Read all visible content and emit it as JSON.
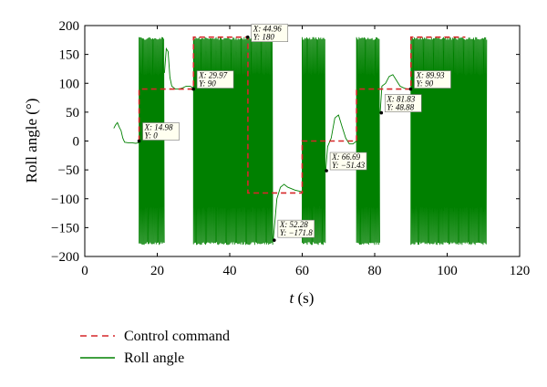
{
  "chart_data": {
    "type": "line",
    "title": "",
    "xlabel": "t (s)",
    "ylabel": "Roll angle (°)",
    "xlim": [
      0,
      120
    ],
    "ylim": [
      -200,
      200
    ],
    "xticks": [
      0,
      20,
      40,
      60,
      80,
      100,
      120
    ],
    "yticks": [
      -200,
      -150,
      -100,
      -50,
      0,
      50,
      100,
      150,
      200
    ],
    "grid": false,
    "legend_position": "bottom-left",
    "colors": {
      "control": "#d62728",
      "roll": "#008000"
    },
    "series": [
      {
        "name": "Control command",
        "style": "dashed",
        "x": [
          15,
          15,
          30,
          30,
          45,
          45,
          60,
          60,
          75,
          75,
          90,
          90,
          105
        ],
        "y": [
          0,
          90,
          90,
          180,
          180,
          -90,
          -90,
          0,
          0,
          90,
          90,
          180,
          180
        ]
      },
      {
        "name": "Roll angle",
        "style": "solid",
        "segments": [
          {
            "kind": "smooth",
            "x": [
              8,
              8.5,
              9,
              9.5,
              10,
              10.5,
              11,
              12,
              13,
              14,
              15
            ],
            "y": [
              22,
              28,
              32,
              24,
              18,
              5,
              -2,
              -3,
              -3,
              -4,
              -3
            ]
          },
          {
            "kind": "oscillate",
            "x": [
              15,
              22
            ],
            "range": [
              -180,
              180
            ]
          },
          {
            "kind": "smooth",
            "x": [
              22,
              22.5,
              23,
              23.5,
              24,
              25,
              26,
              27,
              28,
              29,
              30
            ],
            "y": [
              118,
              160,
              155,
              110,
              95,
              90,
              90,
              92,
              95,
              95,
              92
            ]
          },
          {
            "kind": "oscillate",
            "x": [
              30,
              52
            ],
            "range": [
              -180,
              180
            ]
          },
          {
            "kind": "smooth",
            "x": [
              52,
              53,
              54,
              55,
              56,
              58,
              60
            ],
            "y": [
              -171.8,
              -100,
              -80,
              -75,
              -80,
              -85,
              -88
            ]
          },
          {
            "kind": "oscillate",
            "x": [
              60,
              66.5
            ],
            "range": [
              -180,
              180
            ]
          },
          {
            "kind": "smooth",
            "x": [
              66.5,
              67,
              68,
              69,
              70,
              71,
              72,
              73,
              74,
              75
            ],
            "y": [
              -51.43,
              -10,
              5,
              40,
              45,
              25,
              5,
              -5,
              -5,
              0
            ]
          },
          {
            "kind": "oscillate",
            "x": [
              75,
              81.5
            ],
            "range": [
              -180,
              180
            ]
          },
          {
            "kind": "smooth",
            "x": [
              81.5,
              82,
              83,
              84,
              85,
              86,
              87,
              88,
              89,
              90
            ],
            "y": [
              48.88,
              95,
              100,
              112,
              115,
              105,
              95,
              92,
              90,
              90
            ]
          },
          {
            "kind": "oscillate",
            "x": [
              90,
              111
            ],
            "range": [
              -180,
              180
            ]
          }
        ]
      }
    ],
    "annotations": [
      {
        "x": 14.98,
        "y": 0,
        "x_label": "X: 14.98",
        "y_label": "Y: 0"
      },
      {
        "x": 29.97,
        "y": 90,
        "x_label": "X: 29.97",
        "y_label": "Y: 90"
      },
      {
        "x": 44.96,
        "y": 180,
        "x_label": "X: 44.96",
        "y_label": "Y: 180"
      },
      {
        "x": 52.28,
        "y": -171.8,
        "x_label": "X: 52.28",
        "y_label": "Y: −171.8"
      },
      {
        "x": 66.69,
        "y": -51.43,
        "x_label": "X: 66.69",
        "y_label": "Y: −51.43"
      },
      {
        "x": 81.83,
        "y": 48.88,
        "x_label": "X: 81.83",
        "y_label": "Y: 48.88"
      },
      {
        "x": 89.93,
        "y": 90,
        "x_label": "X: 89.93",
        "y_label": "Y: 90"
      }
    ]
  }
}
